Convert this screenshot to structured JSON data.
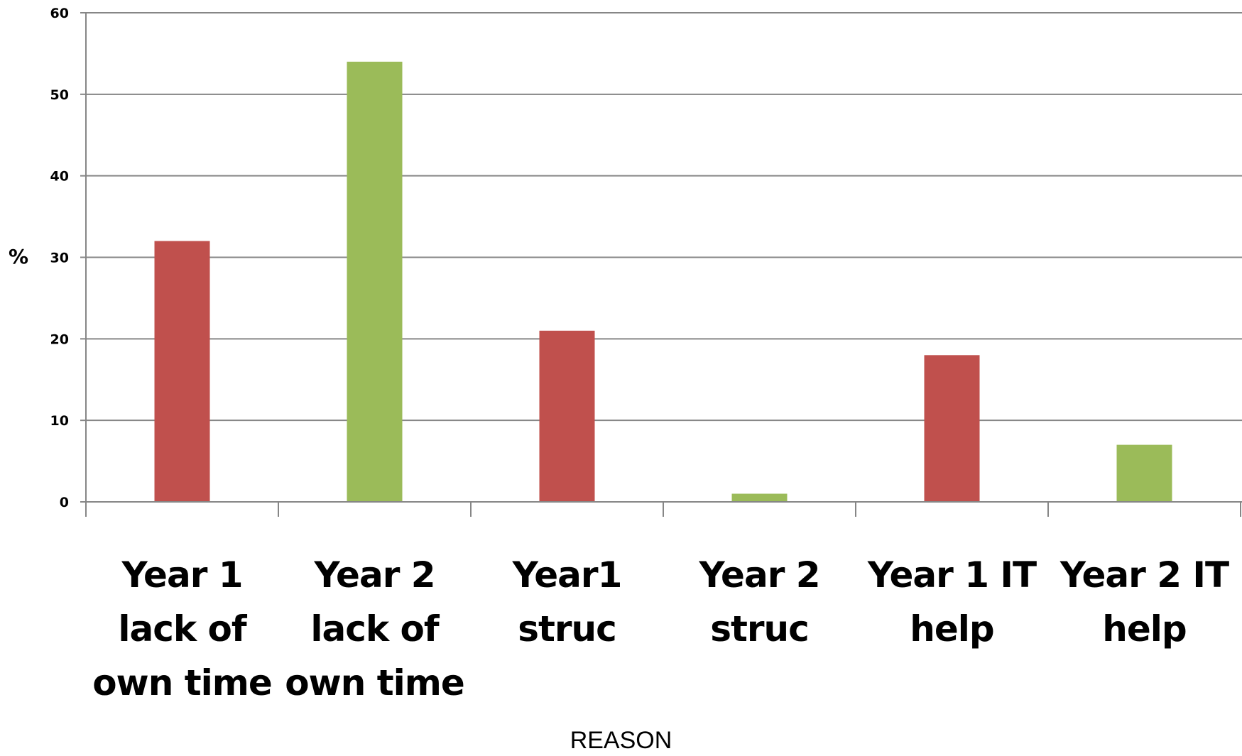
{
  "chart_data": {
    "type": "bar",
    "title": "",
    "xlabel": "REASON",
    "ylabel": "%",
    "ylim": [
      0,
      60
    ],
    "yticks": [
      0,
      10,
      20,
      30,
      40,
      50,
      60
    ],
    "grid": true,
    "legend": "none",
    "categories": [
      "Year 1 lack of own time",
      "Year 2 lack of own time",
      "Year1 struc",
      "Year 2 struc",
      "Year 1 IT help",
      "Year 2 IT help"
    ],
    "category_lines": [
      [
        "Year 1",
        "lack of",
        "own time"
      ],
      [
        "Year 2",
        "lack of",
        "own time"
      ],
      [
        "Year1",
        "struc"
      ],
      [
        "Year 2",
        "struc"
      ],
      [
        "Year 1 IT",
        "help"
      ],
      [
        "Year 2 IT",
        "help"
      ]
    ],
    "values": [
      32,
      54,
      21,
      1,
      18,
      7
    ],
    "colors": [
      "#c0504d",
      "#9bbb59",
      "#c0504d",
      "#9bbb59",
      "#c0504d",
      "#9bbb59"
    ]
  }
}
